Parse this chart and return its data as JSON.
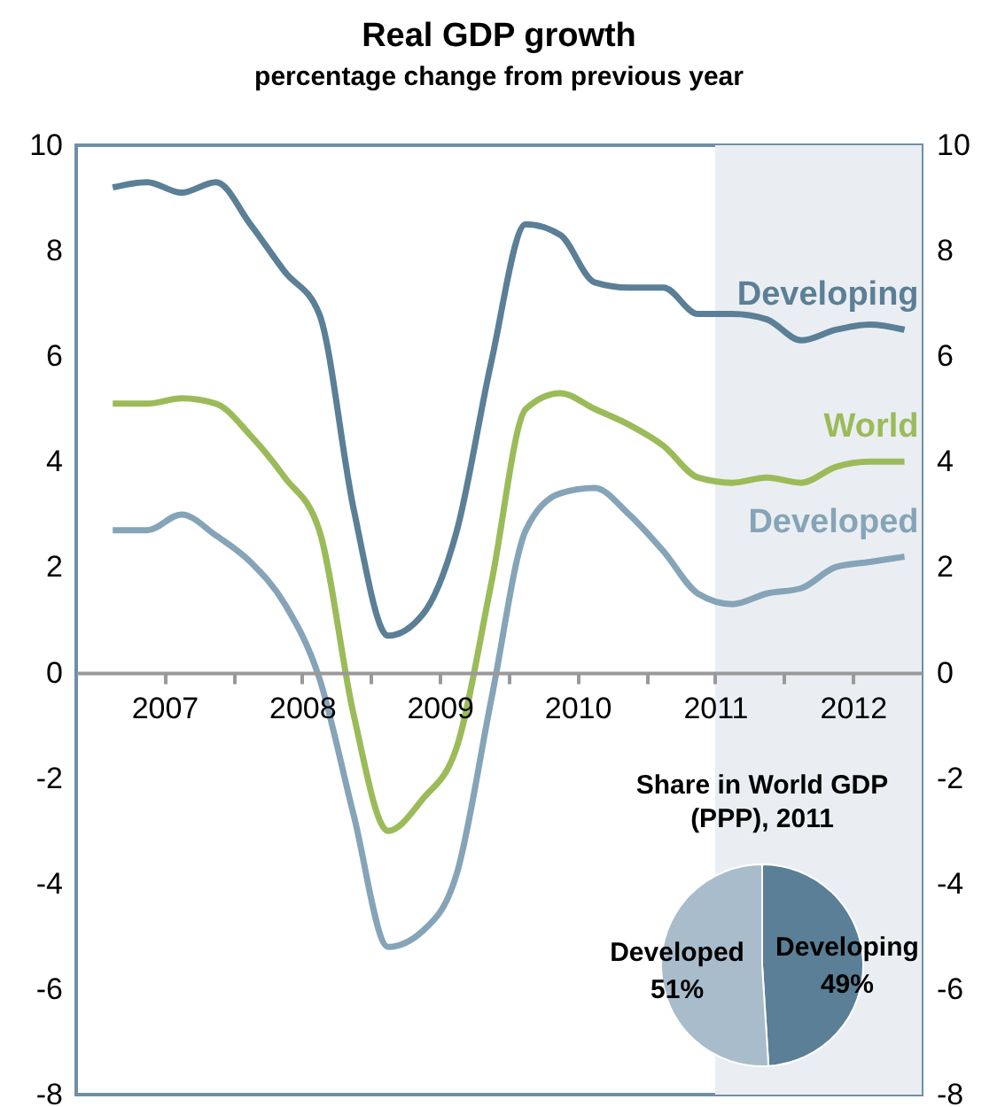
{
  "chart_data": [
    {
      "type": "line",
      "title": "Real GDP growth",
      "subtitle": "percentage change from previous year",
      "x": [
        2007.125,
        2007.375,
        2007.625,
        2007.875,
        2008.125,
        2008.375,
        2008.625,
        2008.875,
        2009.125,
        2009.375,
        2009.625,
        2009.875,
        2010.125,
        2010.375,
        2010.625,
        2010.875,
        2011.125,
        2011.375,
        2011.625,
        2011.875,
        2012.125,
        2012.375,
        2012.625,
        2012.875
      ],
      "xlim": [
        2006.86,
        2013
      ],
      "xticks": [
        {
          "value": 2007.5,
          "label": "2007"
        },
        {
          "value": 2008.5,
          "label": "2008"
        },
        {
          "value": 2009.5,
          "label": "2009"
        },
        {
          "value": 2010.5,
          "label": "2010"
        },
        {
          "value": 2011.5,
          "label": "2011"
        },
        {
          "value": 2012.5,
          "label": "2012"
        },
        {
          "value": 2008,
          "label": null
        },
        {
          "value": 2009,
          "label": null
        },
        {
          "value": 2010,
          "label": null
        },
        {
          "value": 2011,
          "label": null
        },
        {
          "value": 2012,
          "label": null
        }
      ],
      "ylim": [
        -8,
        10
      ],
      "yticks": [
        -8,
        -6,
        -4,
        -2,
        0,
        2,
        4,
        6,
        8,
        10
      ],
      "y2lim": [
        -8,
        10
      ],
      "y2ticks": [
        -8,
        -6,
        -4,
        -2,
        0,
        2,
        4,
        6,
        8,
        10
      ],
      "series": [
        {
          "name": "Developing",
          "color": "#5a7f96",
          "values": [
            9.2,
            9.3,
            9.1,
            9.3,
            8.5,
            7.6,
            6.8,
            3.1,
            0.7,
            1.1,
            2.7,
            5.9,
            8.5,
            8.3,
            7.4,
            7.3,
            7.3,
            6.8,
            6.8,
            6.7,
            6.3,
            6.5,
            6.6,
            6.5
          ]
        },
        {
          "name": "World",
          "color": "#9bbb59",
          "values": [
            5.1,
            5.1,
            5.2,
            5.1,
            4.5,
            3.7,
            2.7,
            -0.8,
            -3.0,
            -2.4,
            -1.4,
            1.7,
            5.0,
            5.3,
            5.0,
            4.7,
            4.3,
            3.7,
            3.6,
            3.7,
            3.6,
            3.9,
            4.0,
            4.0
          ]
        },
        {
          "name": "Developed",
          "color": "#86a4b8",
          "values": [
            2.7,
            2.7,
            3.0,
            2.6,
            2.1,
            1.3,
            -0.1,
            -2.7,
            -5.2,
            -4.9,
            -3.8,
            -0.5,
            2.7,
            3.4,
            3.5,
            3.0,
            2.3,
            1.5,
            1.3,
            1.5,
            1.6,
            2.0,
            2.1,
            2.2
          ]
        }
      ],
      "bands": [
        {
          "axis": "x",
          "from": 2011.5,
          "to": 2013,
          "color": "#eaeef2"
        }
      ]
    },
    {
      "type": "pie",
      "title": "Share in World GDP\n(PPP), 2011",
      "categories": [
        "Developing",
        "Developed"
      ],
      "values": [
        49,
        51
      ],
      "colors": [
        "#5a7f96",
        "#a9bccb"
      ],
      "value_labels": [
        "49%",
        "51%"
      ]
    }
  ]
}
